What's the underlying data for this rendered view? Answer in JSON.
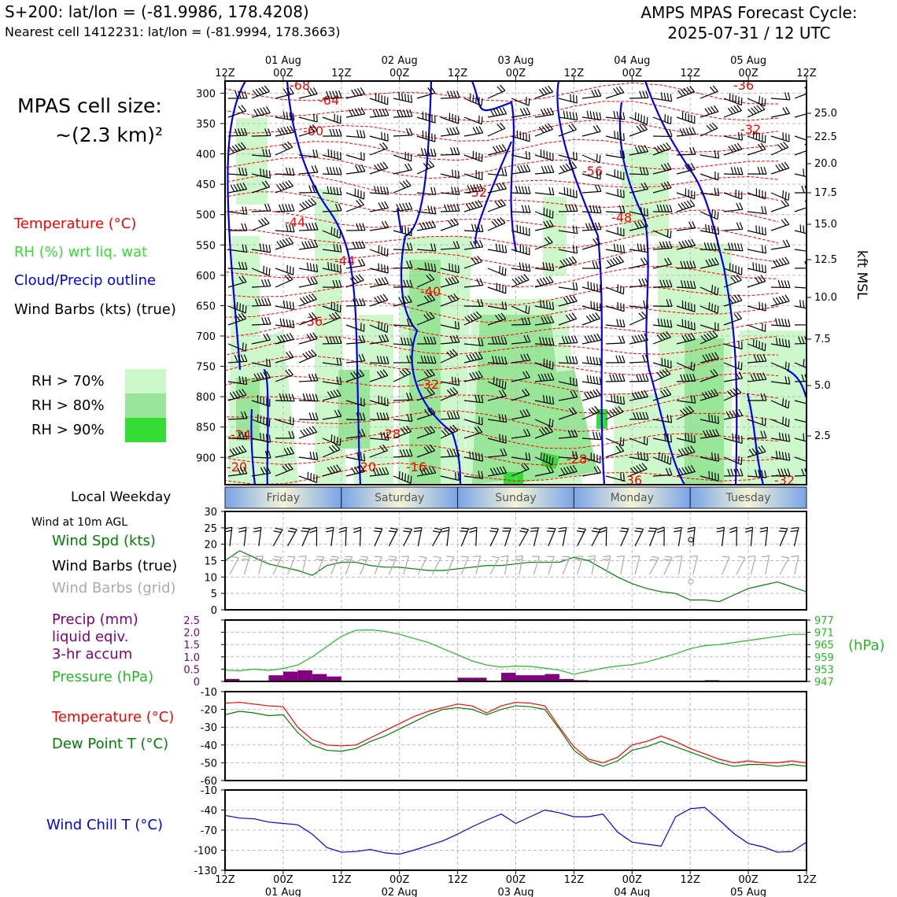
{
  "header": {
    "station": "S+200: lat/lon = (-81.9986, 178.4208)",
    "nearest_cell": "Nearest cell 1412231: lat/lon = (-81.9994, 178.3663)",
    "title_line1": "AMPS MPAS Forecast Cycle:",
    "title_line2": "2025-07-31 / 12 UTC"
  },
  "cell_size": {
    "line1": "MPAS cell size:",
    "line2": "~(2.3 km)²"
  },
  "legend": {
    "temperature": "Temperature (°C)",
    "rh": "RH (%) wrt liq. wat",
    "cloud": "Cloud/Precip outline",
    "wind": "Wind Barbs (kts) (true)",
    "rh_levels": [
      "RH > 70%",
      "RH > 80%",
      "RH > 90%"
    ],
    "rh_colors": [
      "#ccf8cc",
      "#99e699",
      "#33dd33"
    ]
  },
  "colors": {
    "temperature": "#ff0000",
    "rh": "#33dd33",
    "cloud": "#0000ee",
    "precip": "#800080",
    "pressure": "#22bb22",
    "dewpoint": "#008000",
    "windchill": "#0000ee",
    "grid_barb": "#aaaaaa"
  },
  "time_axis": {
    "ticks": [
      "12Z",
      "00Z",
      "12Z",
      "00Z",
      "12Z",
      "00Z",
      "12Z",
      "00Z",
      "12Z",
      "00Z",
      "12Z"
    ],
    "dates": [
      "01 Aug",
      "02 Aug",
      "03 Aug",
      "04 Aug",
      "05 Aug"
    ]
  },
  "weekdays": {
    "title": "Local Weekday",
    "days": [
      "Friday",
      "Saturday",
      "Sunday",
      "Monday",
      "Tuesday"
    ]
  },
  "main_panel": {
    "pressure_levels": [
      "300",
      "350",
      "400",
      "450",
      "500",
      "550",
      "600",
      "650",
      "700",
      "750",
      "800",
      "850",
      "900"
    ],
    "height_ticks": [
      "25.0",
      "22.5",
      "20.0",
      "17.5",
      "15.0",
      "12.5",
      "10.0",
      "7.5",
      "5.0",
      "2.5"
    ],
    "height_label": "kft MSL",
    "temp_labels": [
      "-68",
      "-64",
      "-60",
      "-56",
      "-52",
      "-48",
      "-44",
      "-44",
      "-40",
      "-36",
      "-32",
      "-28",
      "-24",
      "-28",
      "-20",
      "-20",
      "-16",
      "-36",
      "-32",
      "-36",
      "-32",
      "-68"
    ]
  },
  "wind_panel": {
    "title": "Wind at 10m AGL",
    "label_speed": "Wind Spd (kts)",
    "label_true": "Wind Barbs (true)",
    "label_grid": "Wind Barbs (grid)",
    "yticks": [
      "30",
      "25",
      "20",
      "15",
      "10",
      "5",
      "0"
    ]
  },
  "precip_panel": {
    "label_precip_1": "Precip (mm)",
    "label_precip_2": "liquid eqiv.",
    "label_precip_3": "3-hr accum",
    "label_pressure": "Pressure (hPa)",
    "left_ticks": [
      "2.5",
      "2.0",
      "1.5",
      "1.0",
      "0.5",
      "0"
    ],
    "right_ticks": [
      "977",
      "971",
      "965",
      "959",
      "953",
      "947"
    ],
    "right_unit": "(hPa)"
  },
  "temp_panel": {
    "label_temp": "Temperature (°C)",
    "label_dew": "Dew Point T (°C)",
    "yticks": [
      "-10",
      "-20",
      "-30",
      "-40",
      "-50",
      "-60"
    ]
  },
  "windchill_panel": {
    "label": "Wind Chill T (°C)",
    "yticks": [
      "-10",
      "-40",
      "-70",
      "-100",
      "-130"
    ]
  },
  "chart_data": [
    {
      "type": "line",
      "title": "Wind at 10m AGL",
      "x_hours": [
        0,
        3,
        6,
        9,
        12,
        15,
        18,
        21,
        24,
        27,
        30,
        33,
        36,
        39,
        42,
        45,
        48,
        51,
        54,
        57,
        60,
        63,
        66,
        69,
        72,
        75,
        78,
        81,
        84,
        87,
        90,
        93,
        96,
        99,
        102,
        105,
        108,
        111,
        114,
        117,
        120
      ],
      "ylabel": "Wind Spd (kts)",
      "ylim": [
        0,
        30
      ],
      "series": [
        {
          "name": "Wind Spd (kts)",
          "values": [
            15,
            18,
            16,
            14,
            13,
            12,
            10.5,
            13.5,
            14.5,
            14.5,
            13.5,
            13,
            13,
            12.5,
            12,
            12,
            12.5,
            13,
            13.5,
            13.5,
            14,
            14.5,
            14.5,
            14.5,
            16,
            15,
            12.5,
            10,
            8,
            6.5,
            5.5,
            5,
            3,
            3,
            2.5,
            4.5,
            6.5,
            7.5,
            8.5,
            7,
            5.5
          ]
        }
      ]
    },
    {
      "type": "bar",
      "title": "Precip (mm) liquid eqiv. 3-hr accum",
      "x_hours": [
        3,
        6,
        9,
        12,
        15,
        18,
        21,
        24,
        27,
        30,
        33,
        36,
        39,
        42,
        45,
        48,
        51,
        54,
        57,
        60,
        63,
        66,
        69,
        72,
        75,
        78,
        81,
        84,
        87,
        90,
        93,
        96,
        99,
        102,
        105,
        108,
        111,
        114,
        117,
        120
      ],
      "ylim": [
        0,
        2.5
      ],
      "series": [
        {
          "name": "Precip (mm)",
          "values": [
            0.1,
            0,
            0,
            0.25,
            0.4,
            0.45,
            0.3,
            0.2,
            0,
            0,
            0,
            0,
            0,
            0,
            0,
            0,
            0.15,
            0.15,
            0,
            0.35,
            0.25,
            0.25,
            0.3,
            0.1,
            0.05,
            0,
            0,
            0,
            0,
            0,
            0,
            0,
            0,
            0.05,
            0,
            0,
            0,
            0,
            0,
            0
          ]
        }
      ]
    },
    {
      "type": "line",
      "title": "Pressure (hPa)",
      "x_hours": [
        0,
        3,
        6,
        9,
        12,
        15,
        18,
        21,
        24,
        27,
        30,
        33,
        36,
        39,
        42,
        45,
        48,
        51,
        54,
        57,
        60,
        63,
        66,
        69,
        72,
        75,
        78,
        81,
        84,
        87,
        90,
        93,
        96,
        99,
        102,
        105,
        108,
        111,
        114,
        117,
        120
      ],
      "ylabel": "Pressure (hPa)",
      "ylim": [
        947,
        977
      ],
      "series": [
        {
          "name": "Pressure (hPa)",
          "values": [
            952.5,
            952.2,
            953.0,
            952.4,
            953.3,
            955.0,
            959.0,
            964.0,
            969.0,
            972.0,
            972.2,
            971.5,
            970.0,
            968.0,
            966.0,
            963.0,
            960.0,
            957.0,
            955.0,
            954.0,
            954.5,
            954.3,
            953.5,
            952.5,
            950.5,
            952.0,
            953.5,
            954.5,
            955.2,
            956.5,
            958.5,
            960.5,
            963.0,
            964.5,
            965.0,
            966.0,
            967.0,
            968.0,
            969.0,
            970.0,
            970.0
          ]
        }
      ]
    },
    {
      "type": "line",
      "title": "Temperature / Dew Point",
      "x_hours": [
        0,
        3,
        6,
        9,
        12,
        15,
        18,
        21,
        24,
        27,
        30,
        33,
        36,
        39,
        42,
        45,
        48,
        51,
        54,
        57,
        60,
        63,
        66,
        69,
        72,
        75,
        78,
        81,
        84,
        87,
        90,
        93,
        96,
        99,
        102,
        105,
        108,
        111,
        114,
        117,
        120
      ],
      "ylim": [
        -60,
        -10
      ],
      "series": [
        {
          "name": "Temperature (°C)",
          "values": [
            -16.5,
            -16,
            -17,
            -18,
            -18.5,
            -30,
            -37,
            -40,
            -40.5,
            -40,
            -36,
            -32,
            -28,
            -24,
            -21,
            -19,
            -17,
            -18,
            -22,
            -18,
            -16,
            -16.5,
            -18,
            -30,
            -41,
            -48,
            -50,
            -47,
            -40,
            -38,
            -35,
            -38,
            -42,
            -45,
            -48,
            -50,
            -49,
            -50,
            -50,
            -49,
            -50
          ]
        },
        {
          "name": "Dew Point T (°C)",
          "values": [
            -23,
            -21,
            -22,
            -23.5,
            -23,
            -33,
            -40,
            -43,
            -43.5,
            -42,
            -38,
            -35,
            -31,
            -27,
            -23,
            -20,
            -19,
            -20,
            -23,
            -20,
            -18,
            -18.5,
            -20,
            -31,
            -43,
            -49,
            -52,
            -49,
            -43,
            -41,
            -38,
            -41,
            -44,
            -47,
            -50,
            -52,
            -51,
            -51,
            -52,
            -51,
            -52
          ]
        }
      ]
    },
    {
      "type": "line",
      "title": "Wind Chill T (°C)",
      "x_hours": [
        0,
        3,
        6,
        9,
        12,
        15,
        18,
        21,
        24,
        27,
        30,
        33,
        36,
        39,
        42,
        45,
        48,
        51,
        54,
        57,
        60,
        63,
        66,
        69,
        72,
        75,
        78,
        81,
        84,
        87,
        90,
        93,
        96,
        99,
        102,
        105,
        108,
        111,
        114,
        117,
        120
      ],
      "ylim": [
        -130,
        -10
      ],
      "series": [
        {
          "name": "Wind Chill T (°C)",
          "values": [
            -48,
            -52,
            -53,
            -58,
            -60,
            -62,
            -76,
            -96,
            -103,
            -102,
            -99,
            -104,
            -106,
            -100,
            -93,
            -86,
            -76,
            -65,
            -55,
            -46,
            -60,
            -50,
            -40,
            -44,
            -50,
            -50,
            -46,
            -73,
            -88,
            -91,
            -94,
            -50,
            -38,
            -36,
            -55,
            -75,
            -90,
            -95,
            -103,
            -102,
            -88
          ]
        }
      ]
    }
  ]
}
